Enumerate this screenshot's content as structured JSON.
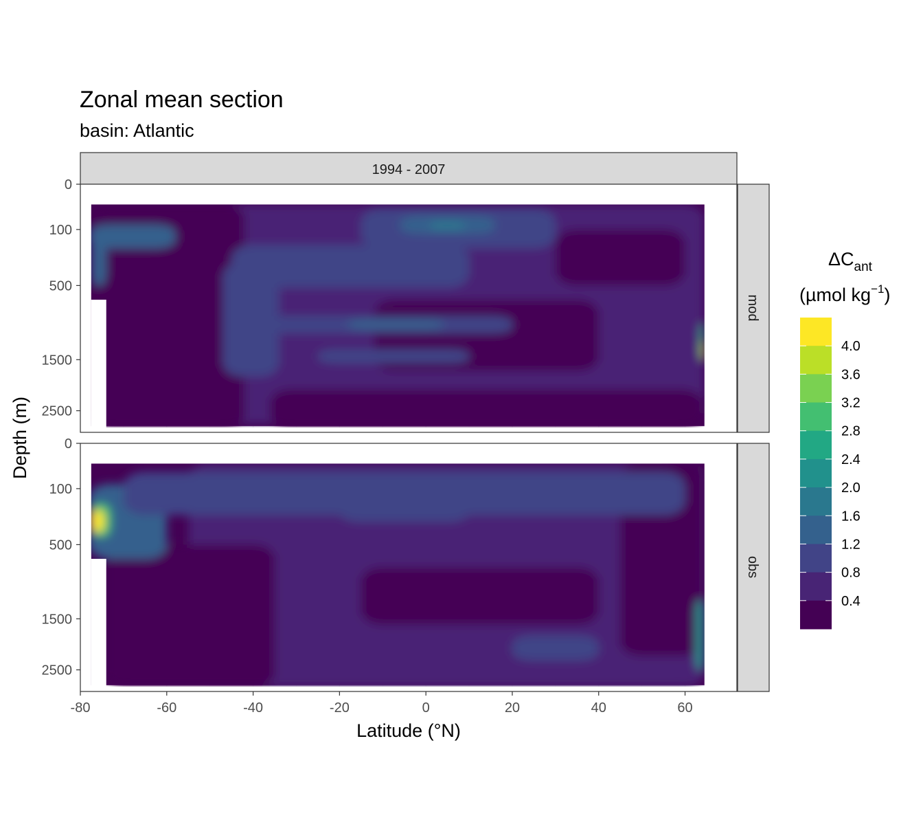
{
  "chart_data": {
    "type": "heatmap",
    "title": "Zonal mean section",
    "subtitle": "basin: Atlantic",
    "xlabel": "Latitude (°N)",
    "ylabel": "Depth (m)",
    "xlim": [
      -80,
      72
    ],
    "x_ticks": [
      -80,
      -60,
      -40,
      -20,
      0,
      20,
      40,
      60
    ],
    "x_tick_labels": [
      "-80",
      "-60",
      "-40",
      "-20",
      "0",
      "20",
      "40",
      "60"
    ],
    "y_ticks": [
      0,
      100,
      500,
      1500,
      2500
    ],
    "y_tick_labels": [
      "0",
      "100",
      "500",
      "1500",
      "2500"
    ],
    "ylim": [
      0,
      3000
    ],
    "y_scale": "sqrt",
    "y_reversed": true,
    "column_strip": "1994 - 2007",
    "row_strips": [
      "mod",
      "obs"
    ],
    "legend": {
      "title_main": "ΔC",
      "title_sub": "ant",
      "unit_open": "(µmol kg",
      "unit_sup": "−1",
      "unit_close": ")",
      "breaks": [
        4.0,
        3.6,
        3.2,
        2.8,
        2.4,
        2.0,
        1.6,
        1.2,
        0.8,
        0.4
      ],
      "break_labels": [
        "4.0",
        "3.6",
        "3.2",
        "2.8",
        "2.4",
        "2.0",
        "1.6",
        "1.2",
        "0.8",
        "0.4"
      ],
      "colors": [
        "#FDE725",
        "#BBDF27",
        "#7AD151",
        "#43BF71",
        "#22A884",
        "#21918C",
        "#2A788E",
        "#34618D",
        "#414487",
        "#482475",
        "#440154"
      ],
      "position": "right"
    },
    "panels": [
      {
        "name": "mod",
        "features": [
          {
            "lat": [
              -50,
              64.5
            ],
            "depth": [
              20,
              2800
            ],
            "value": 0.6
          },
          {
            "lat": [
              -77.5,
              -42
            ],
            "depth": [
              20,
              2900
            ],
            "value": 0.2
          },
          {
            "lat": [
              -36,
              64
            ],
            "depth": [
              2050,
              2900
            ],
            "value": 0.2
          },
          {
            "lat": [
              -12,
              40
            ],
            "depth": [
              650,
              1700
            ],
            "value": 0.2
          },
          {
            "lat": [
              30,
              60
            ],
            "depth": [
              100,
              500
            ],
            "value": 0.2
          },
          {
            "lat": [
              -45,
              10
            ],
            "depth": [
              180,
              520
            ],
            "value": 1.0
          },
          {
            "lat": [
              -15,
              30
            ],
            "depth": [
              30,
              200
            ],
            "value": 1.0
          },
          {
            "lat": [
              -6,
              16
            ],
            "depth": [
              50,
              120
            ],
            "value": 1.4
          },
          {
            "lat": [
              1,
              9
            ],
            "depth": [
              70,
              100
            ],
            "value": 1.8
          },
          {
            "lat": [
              -38,
              20
            ],
            "depth": [
              850,
              1080
            ],
            "value": 1.0
          },
          {
            "lat": [
              -18,
              4
            ],
            "depth": [
              900,
              1020
            ],
            "value": 1.4
          },
          {
            "lat": [
              -25,
              10
            ],
            "depth": [
              1330,
              1560
            ],
            "value": 1.0
          },
          {
            "lat": [
              -78,
              -58
            ],
            "depth": [
              80,
              200
            ],
            "value": 1.2
          },
          {
            "lat": [
              -77.5,
              -74
            ],
            "depth": [
              120,
              500
            ],
            "value": 1.4
          },
          {
            "lat": [
              63.5,
              64.5
            ],
            "depth": [
              950,
              1500
            ],
            "value": 2.6
          },
          {
            "lat": [
              63.8,
              64.5
            ],
            "depth": [
              1200,
              1500
            ],
            "value": 3.8
          },
          {
            "lat": [
              -47,
              -34
            ],
            "depth": [
              300,
              1800
            ],
            "value": 0.9
          }
        ]
      },
      {
        "name": "obs",
        "features": [
          {
            "lat": [
              -55,
              64.5
            ],
            "depth": [
              20,
              2900
            ],
            "value": 0.6
          },
          {
            "lat": [
              -74,
              -35
            ],
            "depth": [
              500,
              2900
            ],
            "value": 0.2
          },
          {
            "lat": [
              45,
              64
            ],
            "depth": [
              20,
              2200
            ],
            "value": 0.2
          },
          {
            "lat": [
              -15,
              40
            ],
            "depth": [
              750,
              1600
            ],
            "value": 0.2
          },
          {
            "lat": [
              -78,
              -60
            ],
            "depth": [
              80,
              650
            ],
            "value": 1.2
          },
          {
            "lat": [
              -77.5,
              -73
            ],
            "depth": [
              180,
              420
            ],
            "value": 2.8
          },
          {
            "lat": [
              -77.5,
              -74.5
            ],
            "depth": [
              220,
              380
            ],
            "value": 4.0
          },
          {
            "lat": [
              -20,
              10
            ],
            "depth": [
              120,
              300
            ],
            "value": 1.0
          },
          {
            "lat": [
              20,
              40
            ],
            "depth": [
              1800,
              2300
            ],
            "value": 1.0
          },
          {
            "lat": [
              62.5,
              64.5
            ],
            "depth": [
              1200,
              2500
            ],
            "value": 2.0
          },
          {
            "lat": [
              -70,
              60
            ],
            "depth": [
              40,
              250
            ],
            "value": 0.8
          }
        ]
      }
    ]
  }
}
